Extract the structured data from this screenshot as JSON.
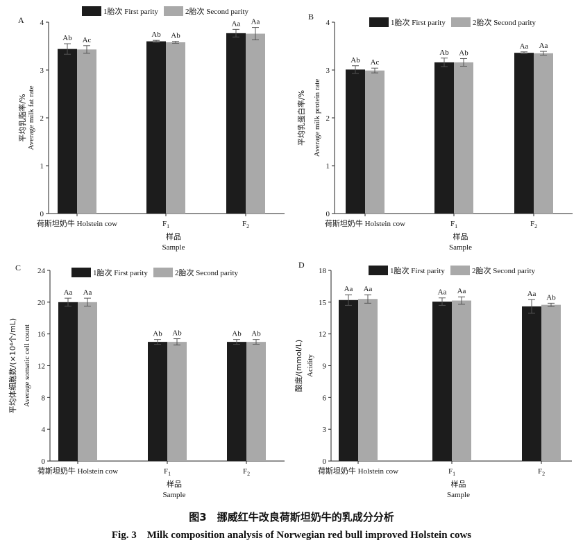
{
  "figure_caption_cn": "图3　挪威红牛改良荷斯坦奶牛的乳成分分析",
  "figure_caption_en": "Fig. 3　Milk composition analysis of Norwegian red bull improved Holstein cows",
  "colors": {
    "first_parity": "#1c1c1c",
    "second_parity": "#a9a9a9",
    "axis": "#222222"
  },
  "chart_data": [
    {
      "panel": "A",
      "type": "bar",
      "categories": [
        "荷斯坦奶牛 Holstein cow",
        "F1",
        "F2"
      ],
      "xlabel": [
        "样品",
        "Sample"
      ],
      "ylabel": [
        "平均乳脂率/%",
        "Average milk fat rate"
      ],
      "ylim": [
        0,
        4
      ],
      "yticks": [
        0,
        1,
        2,
        3,
        4
      ],
      "legend_position": "top",
      "series": [
        {
          "name": "1胎次 First parity",
          "values": [
            3.44,
            3.6,
            3.77
          ],
          "errors": [
            0.11,
            0.02,
            0.08
          ],
          "labels": [
            "Ab",
            "Ab",
            "Aa"
          ]
        },
        {
          "name": "2胎次 Second parity",
          "values": [
            3.43,
            3.58,
            3.76
          ],
          "errors": [
            0.08,
            0.02,
            0.13
          ],
          "labels": [
            "Ac",
            "Ab",
            "Aa"
          ]
        }
      ]
    },
    {
      "panel": "B",
      "type": "bar",
      "categories": [
        "荷斯坦奶牛 Holstein cow",
        "F1",
        "F2"
      ],
      "xlabel": [
        "样品",
        "Sample"
      ],
      "ylabel": [
        "平均乳蛋白率/%",
        "Average milk protein rate"
      ],
      "ylim": [
        0,
        4
      ],
      "yticks": [
        0,
        1,
        2,
        3,
        4
      ],
      "legend_position": "top",
      "series": [
        {
          "name": "1胎次 First parity",
          "values": [
            3.01,
            3.16,
            3.36
          ],
          "errors": [
            0.08,
            0.09,
            0.02
          ],
          "labels": [
            "Ab",
            "Ab",
            "Aa"
          ]
        },
        {
          "name": "2胎次 Second parity",
          "values": [
            2.99,
            3.16,
            3.35
          ],
          "errors": [
            0.05,
            0.08,
            0.04
          ],
          "labels": [
            "Ac",
            "Ab",
            "Aa"
          ]
        }
      ]
    },
    {
      "panel": "C",
      "type": "bar",
      "categories": [
        "荷斯坦奶牛 Holstein cow",
        "F1",
        "F2"
      ],
      "xlabel": [
        "样品",
        "Sample"
      ],
      "ylabel": [
        "平均体细胞数/(×10⁴个/mL)",
        "Average somatic cell count"
      ],
      "ylim": [
        0,
        24
      ],
      "yticks": [
        0,
        4,
        8,
        12,
        16,
        20,
        24
      ],
      "legend_position": "top",
      "series": [
        {
          "name": "1胎次 First parity",
          "values": [
            20.0,
            15.0,
            15.0
          ],
          "errors": [
            0.5,
            0.3,
            0.3
          ],
          "labels": [
            "Aa",
            "Ab",
            "Ab"
          ]
        },
        {
          "name": "2胎次 Second parity",
          "values": [
            20.0,
            15.0,
            15.0
          ],
          "errors": [
            0.5,
            0.4,
            0.3
          ],
          "labels": [
            "Aa",
            "Ab",
            "Ab"
          ]
        }
      ]
    },
    {
      "panel": "D",
      "type": "bar",
      "categories": [
        "荷斯坦奶牛 Holstein cow",
        "F1",
        "F2"
      ],
      "xlabel": [
        "样品",
        "Sample"
      ],
      "ylabel": [
        "酸度/(mmol/L)",
        "Acidity"
      ],
      "ylim": [
        0,
        18
      ],
      "yticks": [
        0,
        3,
        6,
        9,
        12,
        15,
        18
      ],
      "legend_position": "top",
      "series": [
        {
          "name": "1胎次 First parity",
          "values": [
            15.2,
            15.05,
            14.6
          ],
          "errors": [
            0.5,
            0.35,
            0.65
          ],
          "labels": [
            "Aa",
            "Aa",
            "Aa"
          ]
        },
        {
          "name": "2胎次 Second parity",
          "values": [
            15.3,
            15.15,
            14.75
          ],
          "errors": [
            0.4,
            0.35,
            0.15
          ],
          "labels": [
            "Aa",
            "Aa",
            "Ab"
          ]
        }
      ]
    }
  ]
}
